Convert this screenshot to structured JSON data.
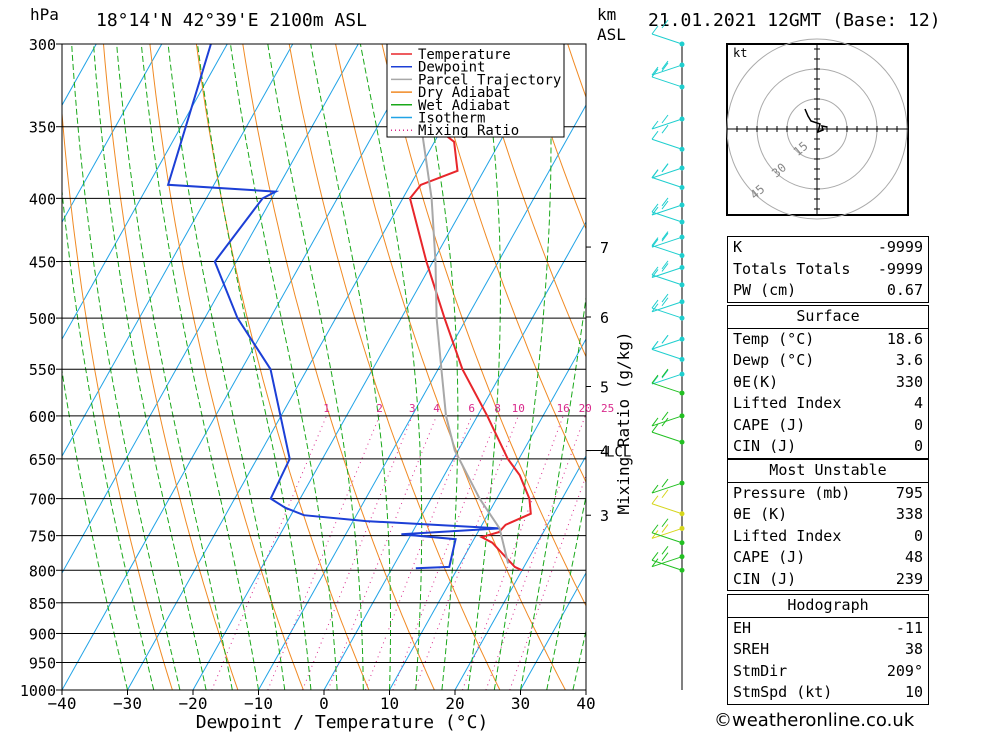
{
  "header": {
    "pressure_unit": "hPa",
    "location": "18°14'N 42°39'E 2100m ASL",
    "km_label": "km",
    "asl_label": "ASL",
    "datetime": "21.01.2021 12GMT (Base: 12)"
  },
  "credit": "©weatheronline.co.uk",
  "hodograph": {
    "unit": "kt",
    "ring_labels": [
      "15",
      "30",
      "45"
    ]
  },
  "colors": {
    "temperature": "#e8262b",
    "dewpoint": "#1c3fd6",
    "parcel": "#a8a8a8",
    "dry_adiabat": "#f08a24",
    "wet_adiabat": "#1aa81a",
    "isotherm": "#21a3e6",
    "mixing_ratio": "#d92a8c"
  },
  "indices": {
    "k_label": "K",
    "k_value": "-9999",
    "tt_label": "Totals Totals",
    "tt_value": "-9999",
    "pw_label": "PW (cm)",
    "pw_value": "0.67"
  },
  "surface": {
    "title": "Surface",
    "temp_label": "Temp (°C)",
    "temp_value": "18.6",
    "dewp_label": "Dewp (°C)",
    "dewp_value": "3.6",
    "theta_label": "θE(K)",
    "theta_value": "330",
    "li_label": "Lifted Index",
    "li_value": "4",
    "cape_label": "CAPE (J)",
    "cape_value": "0",
    "cin_label": "CIN (J)",
    "cin_value": "0"
  },
  "most_unstable": {
    "title": "Most Unstable",
    "pressure_label": "Pressure (mb)",
    "pressure_value": "795",
    "theta_label": "θE (K)",
    "theta_value": "338",
    "li_label": "Lifted Index",
    "li_value": "0",
    "cape_label": "CAPE (J)",
    "cape_value": "48",
    "cin_label": "CIN (J)",
    "cin_value": "239"
  },
  "hodo_stats": {
    "title": "Hodograph",
    "eh_label": "EH",
    "eh_value": "-11",
    "sreh_label": "SREH",
    "sreh_value": "38",
    "stmdir_label": "StmDir",
    "stmdir_value": "209°",
    "stmspd_label": "StmSpd (kt)",
    "stmspd_value": "10"
  },
  "chart_data": {
    "type": "line",
    "title": "18°14'N 42°39'E 2100m ASL",
    "xlabel": "Dewpoint / Temperature (°C)",
    "ylabel": "hPa",
    "xlim": [
      -40,
      40
    ],
    "ylim": [
      1000,
      300
    ],
    "x_ticks": [
      "−40",
      "−30",
      "−20",
      "−10",
      "0",
      "10",
      "20",
      "30",
      "40"
    ],
    "pressure_levels": [
      300,
      350,
      400,
      450,
      500,
      550,
      600,
      650,
      700,
      750,
      800,
      850,
      900,
      950,
      1000
    ],
    "km_ticks": [
      {
        "km": 3,
        "p": 722
      },
      {
        "km": 4,
        "p": 640
      },
      {
        "km": 5,
        "p": 568
      },
      {
        "km": 6,
        "p": 499
      },
      {
        "km": 7,
        "p": 438
      }
    ],
    "lcl": {
      "label": "LCL",
      "p": 640
    },
    "mixing_ratio_label": "Mixing Ratio (g/kg)",
    "mixing_ratio_values": [
      "1",
      "2",
      "3",
      "4",
      "6",
      "8",
      "10",
      "16",
      "20",
      "25"
    ],
    "legend": [
      "Temperature",
      "Dewpoint",
      "Parcel Trajectory",
      "Dry Adiabat",
      "Wet Adiabat",
      "Isotherm",
      "Mixing Ratio"
    ],
    "legend_position": "top-right",
    "series": [
      {
        "name": "Temperature",
        "points": [
          [
            800,
            20.0
          ],
          [
            795,
            18.6
          ],
          [
            760,
            13.1
          ],
          [
            752,
            11.0
          ],
          [
            745,
            13.2
          ],
          [
            735,
            13.6
          ],
          [
            720,
            16.5
          ],
          [
            700,
            15.0
          ],
          [
            670,
            11.5
          ],
          [
            650,
            8.3
          ],
          [
            600,
            1.5
          ],
          [
            550,
            -6.3
          ],
          [
            500,
            -13.4
          ],
          [
            450,
            -21.0
          ],
          [
            400,
            -28.9
          ],
          [
            390,
            -28.4
          ],
          [
            380,
            -24.0
          ],
          [
            360,
            -27.0
          ],
          [
            340,
            -35.6
          ],
          [
            300,
            -45.0
          ]
        ]
      },
      {
        "name": "Dewpoint",
        "points": [
          [
            797,
            3.6
          ],
          [
            795,
            8.6
          ],
          [
            755,
            7.2
          ],
          [
            748,
            -1.5
          ],
          [
            740,
            13.0
          ],
          [
            730,
            -8.0
          ],
          [
            722,
            -18.0
          ],
          [
            712,
            -21.5
          ],
          [
            700,
            -24.5
          ],
          [
            650,
            -25.0
          ],
          [
            550,
            -35.6
          ],
          [
            500,
            -45.0
          ],
          [
            450,
            -53.3
          ],
          [
            400,
            -51.4
          ],
          [
            395,
            -50.0
          ],
          [
            390,
            -67.0
          ],
          [
            300,
            -72.5
          ]
        ]
      },
      {
        "name": "Parcel Trajectory",
        "points": [
          [
            790,
            17.3
          ],
          [
            740,
            13.0
          ],
          [
            700,
            7.4
          ],
          [
            640,
            -0.5
          ],
          [
            600,
            -4.8
          ],
          [
            550,
            -9.5
          ],
          [
            500,
            -14.6
          ],
          [
            450,
            -19.6
          ],
          [
            400,
            -25.6
          ],
          [
            350,
            -33.3
          ],
          [
            310,
            -41.0
          ]
        ]
      }
    ]
  },
  "hodograph_data": {
    "points": [
      [
        -12,
        20
      ],
      [
        -9,
        13
      ],
      [
        -6,
        8
      ],
      [
        3,
        5
      ],
      [
        1,
        -3
      ],
      [
        6,
        -1
      ],
      [
        5,
        3
      ],
      [
        10,
        2
      ]
    ]
  },
  "wind_profile": [
    300,
    312,
    325,
    345,
    365,
    378,
    392,
    405,
    418,
    430,
    445,
    455,
    470,
    485,
    500,
    520,
    540,
    555,
    575,
    600,
    630,
    680,
    720,
    740,
    760,
    780,
    800
  ]
}
